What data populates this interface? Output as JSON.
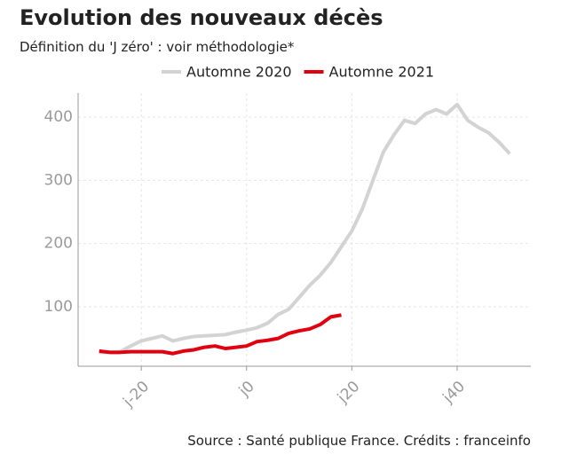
{
  "chart_data": {
    "type": "line",
    "title": "Evolution des nouveaux décès",
    "subtitle": "Définition du 'J zéro' : voir méthodologie*",
    "source": "Source : Santé publique France. Crédits : franceinfo",
    "xlim": [
      -32,
      54
    ],
    "ylim": [
      6,
      438
    ],
    "xticks": [
      {
        "value": -20,
        "label": "j-20"
      },
      {
        "value": 0,
        "label": "j0"
      },
      {
        "value": 20,
        "label": "j20"
      },
      {
        "value": 40,
        "label": "j40"
      }
    ],
    "yticks": [
      100,
      200,
      300,
      400
    ],
    "grid": true,
    "legend": "top",
    "series": [
      {
        "name": "Automne 2020",
        "color": "#d3d3d3",
        "x": [
          -28,
          -26,
          -24,
          -22,
          -20,
          -18,
          -16,
          -14,
          -12,
          -10,
          -8,
          -6,
          -4,
          -2,
          0,
          2,
          4,
          6,
          8,
          10,
          12,
          14,
          16,
          18,
          20,
          22,
          24,
          26,
          28,
          30,
          32,
          34,
          36,
          38,
          40,
          42,
          44,
          46,
          48,
          50
        ],
        "values": [
          28,
          28,
          29,
          38,
          46,
          50,
          54,
          46,
          50,
          53,
          54,
          55,
          56,
          60,
          63,
          67,
          74,
          88,
          96,
          115,
          134,
          150,
          170,
          195,
          220,
          255,
          300,
          345,
          372,
          395,
          390,
          405,
          412,
          405,
          420,
          395,
          384,
          375,
          360,
          342
        ]
      },
      {
        "name": "Automne 2021",
        "color": "#e1000f",
        "x": [
          -28,
          -26,
          -24,
          -22,
          -20,
          -18,
          -16,
          -14,
          -12,
          -10,
          -8,
          -6,
          -4,
          -2,
          0,
          2,
          4,
          6,
          8,
          10,
          12,
          14,
          16,
          18
        ],
        "values": [
          30,
          28,
          28,
          29,
          29,
          29,
          29,
          26,
          30,
          32,
          36,
          38,
          34,
          36,
          38,
          45,
          47,
          50,
          58,
          62,
          65,
          72,
          84,
          87
        ]
      }
    ]
  }
}
